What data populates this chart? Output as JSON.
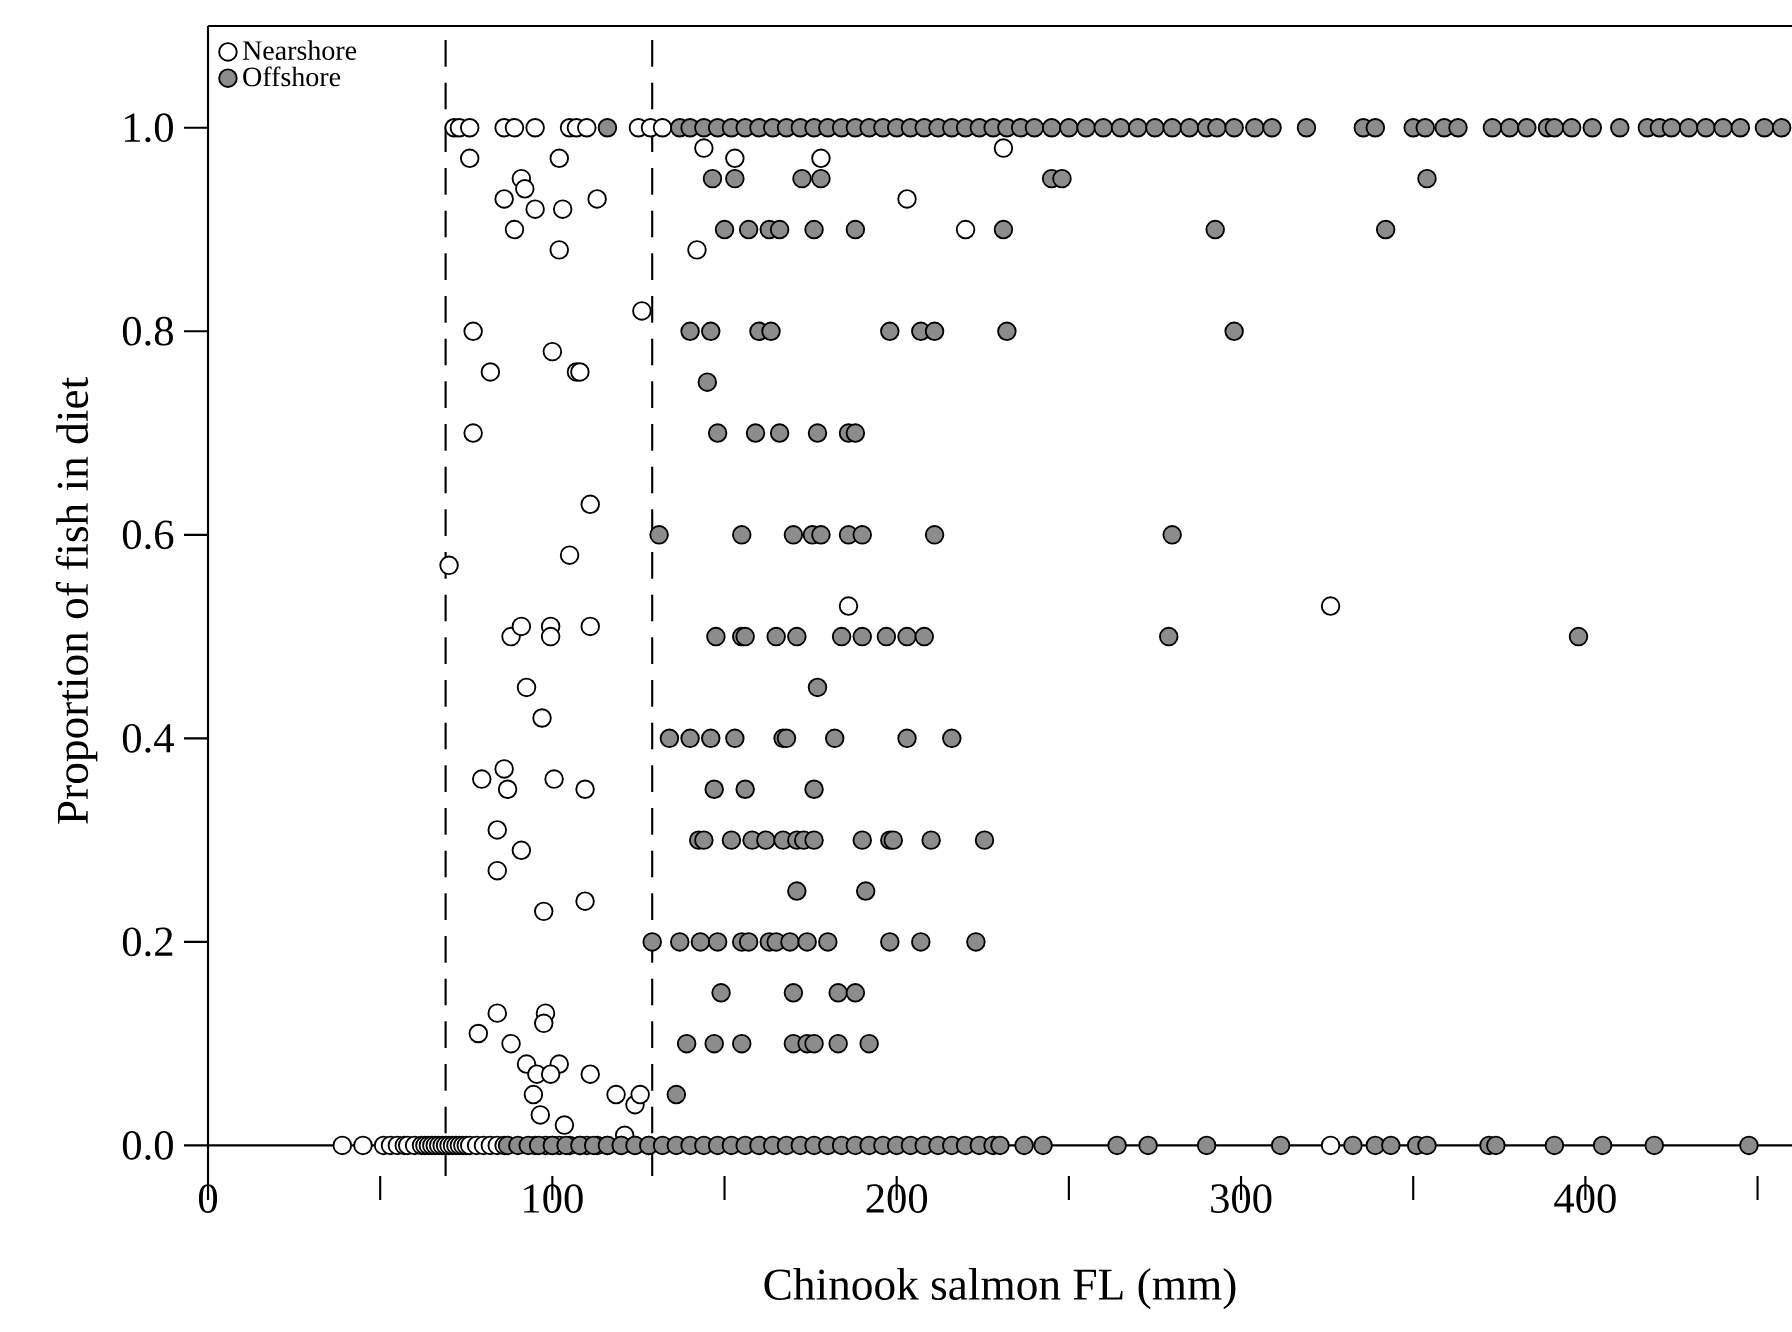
{
  "chart_data": {
    "type": "scatter",
    "xlabel": "Chinook salmon FL (mm)",
    "ylabel": "Proportion of fish in diet",
    "xlim": [
      0,
      460
    ],
    "ylim": [
      -0.03,
      1.1
    ],
    "xticks": [
      0,
      {
        "value": 50,
        "label": null
      },
      100,
      {
        "value": 150,
        "label": null
      },
      200,
      {
        "value": 250,
        "label": null
      },
      300,
      {
        "value": 350,
        "label": null
      },
      400,
      {
        "value": 450,
        "label": null
      }
    ],
    "yticks": [
      {
        "value": 0,
        "label": "0.0"
      },
      0.2,
      0.4,
      0.6,
      0.8,
      {
        "value": 1,
        "label": "1.0"
      }
    ],
    "legend": "top left",
    "ref_lines": [
      {
        "axis": "x",
        "value": 69,
        "line_style": "dashed",
        "color": "#000000"
      },
      {
        "axis": "x",
        "value": 129,
        "line_style": "dashed",
        "color": "#000000"
      }
    ],
    "series": [
      {
        "name": "Nearshore",
        "color": "#ffffff",
        "x": [
          71.5,
          73,
          76,
          86,
          89,
          95,
          105,
          107,
          110,
          125,
          128.5,
          132,
          76,
          102,
          144,
          153,
          178,
          231,
          86,
          91,
          92,
          95,
          89,
          103,
          102,
          113,
          203,
          142,
          220,
          126,
          77,
          82,
          77,
          100,
          107,
          108,
          111,
          105,
          70,
          186,
          326,
          88,
          91,
          99.5,
          99.5,
          111,
          92.5,
          97,
          79.5,
          86,
          87,
          100.5,
          109.5,
          84,
          91,
          84,
          97.5,
          109.5,
          84,
          78.5,
          98,
          97.5,
          88,
          92.5,
          95.5,
          102,
          99.5,
          111,
          94.5,
          96.5,
          103.5,
          118.5,
          124,
          125.5,
          121,
          39,
          45,
          51,
          53,
          55,
          57,
          58,
          60,
          62,
          63,
          64,
          65,
          66,
          67,
          68,
          69,
          70,
          71,
          72,
          73,
          74,
          75,
          76,
          78,
          80,
          82,
          84,
          86,
          95,
          98,
          100,
          102,
          105,
          108,
          110,
          113,
          116,
          120,
          124,
          128,
          326
        ],
        "values": [
          1,
          1,
          1,
          1,
          1,
          1,
          1,
          1,
          1,
          1,
          1,
          1,
          0.97,
          0.97,
          0.98,
          0.97,
          0.97,
          0.98,
          0.93,
          0.95,
          0.94,
          0.92,
          0.9,
          0.92,
          0.88,
          0.93,
          0.93,
          0.88,
          0.9,
          0.82,
          0.8,
          0.76,
          0.7,
          0.78,
          0.76,
          0.76,
          0.63,
          0.58,
          0.57,
          0.53,
          0.53,
          0.5,
          0.51,
          0.51,
          0.5,
          0.51,
          0.45,
          0.42,
          0.36,
          0.37,
          0.35,
          0.36,
          0.35,
          0.31,
          0.29,
          0.27,
          0.23,
          0.24,
          0.13,
          0.11,
          0.13,
          0.12,
          0.1,
          0.08,
          0.07,
          0.08,
          0.07,
          0.07,
          0.05,
          0.03,
          0.02,
          0.05,
          0.04,
          0.05,
          0.01,
          0,
          0,
          0,
          0,
          0,
          0,
          0,
          0,
          0,
          0,
          0,
          0,
          0,
          0,
          0,
          0,
          0,
          0,
          0,
          0,
          0,
          0,
          0,
          0,
          0,
          0,
          0,
          0,
          0,
          0,
          0,
          0,
          0,
          0,
          0,
          0,
          0,
          0,
          0,
          0,
          0
        ]
      },
      {
        "name": "Offshore",
        "color": "#8c8c8c",
        "x": [
          116,
          137,
          140,
          144,
          148,
          152,
          156,
          160,
          164,
          168,
          172,
          176,
          180,
          184,
          188,
          192,
          196,
          200,
          204,
          208,
          212,
          216,
          220,
          224,
          228,
          232,
          236,
          240,
          245,
          250,
          255,
          260,
          265,
          270,
          275,
          280,
          285,
          290,
          293,
          298,
          304,
          309,
          319,
          335.5,
          339,
          350,
          353.5,
          359,
          363,
          373,
          378,
          383,
          389,
          391,
          396,
          402,
          410,
          418,
          421.5,
          425,
          430,
          435,
          440,
          445,
          452,
          457,
          146.5,
          153,
          172.5,
          178,
          245,
          248,
          354,
          150,
          157,
          163,
          166,
          176,
          188,
          231,
          292.5,
          342,
          140,
          146,
          160,
          163.5,
          198,
          207,
          211,
          232,
          298,
          145,
          148,
          159,
          166,
          177,
          186,
          188,
          131,
          155,
          170,
          175.5,
          178,
          186,
          190,
          211,
          280,
          147.5,
          155,
          156,
          165,
          171,
          184,
          190,
          197,
          203,
          208,
          279,
          398,
          177,
          134,
          140,
          146,
          153,
          167,
          168,
          182,
          203,
          216,
          147,
          156,
          176,
          142.5,
          144,
          152,
          158,
          162,
          167,
          171,
          173,
          176,
          190,
          198,
          199,
          210,
          225.5,
          171,
          191,
          129,
          137,
          143,
          148,
          155,
          157,
          163,
          165,
          169,
          174,
          180,
          198,
          207,
          223,
          149,
          170,
          183,
          188,
          139,
          147,
          155,
          170,
          174,
          176,
          183,
          192,
          136,
          87,
          90,
          93,
          96,
          100,
          104,
          108,
          112,
          116,
          120,
          124,
          128,
          132,
          136,
          140,
          144,
          148,
          152,
          156,
          160,
          164,
          168,
          172,
          176,
          180,
          184,
          188,
          192,
          196,
          200,
          204,
          208,
          212,
          216,
          220,
          224,
          228,
          230,
          237,
          242.5,
          264,
          273,
          290,
          311.5,
          332.5,
          339,
          343.5,
          351,
          354,
          372,
          374,
          391,
          405,
          420,
          447.5
        ],
        "values": [
          1,
          1,
          1,
          1,
          1,
          1,
          1,
          1,
          1,
          1,
          1,
          1,
          1,
          1,
          1,
          1,
          1,
          1,
          1,
          1,
          1,
          1,
          1,
          1,
          1,
          1,
          1,
          1,
          1,
          1,
          1,
          1,
          1,
          1,
          1,
          1,
          1,
          1,
          1,
          1,
          1,
          1,
          1,
          1,
          1,
          1,
          1,
          1,
          1,
          1,
          1,
          1,
          1,
          1,
          1,
          1,
          1,
          1,
          1,
          1,
          1,
          1,
          1,
          1,
          1,
          1,
          0.95,
          0.95,
          0.95,
          0.95,
          0.95,
          0.95,
          0.95,
          0.9,
          0.9,
          0.9,
          0.9,
          0.9,
          0.9,
          0.9,
          0.9,
          0.9,
          0.8,
          0.8,
          0.8,
          0.8,
          0.8,
          0.8,
          0.8,
          0.8,
          0.8,
          0.75,
          0.7,
          0.7,
          0.7,
          0.7,
          0.7,
          0.7,
          0.6,
          0.6,
          0.6,
          0.6,
          0.6,
          0.6,
          0.6,
          0.6,
          0.6,
          0.5,
          0.5,
          0.5,
          0.5,
          0.5,
          0.5,
          0.5,
          0.5,
          0.5,
          0.5,
          0.5,
          0.5,
          0.45,
          0.4,
          0.4,
          0.4,
          0.4,
          0.4,
          0.4,
          0.4,
          0.4,
          0.4,
          0.35,
          0.35,
          0.35,
          0.3,
          0.3,
          0.3,
          0.3,
          0.3,
          0.3,
          0.3,
          0.3,
          0.3,
          0.3,
          0.3,
          0.3,
          0.3,
          0.3,
          0.25,
          0.25,
          0.2,
          0.2,
          0.2,
          0.2,
          0.2,
          0.2,
          0.2,
          0.2,
          0.2,
          0.2,
          0.2,
          0.2,
          0.2,
          0.2,
          0.15,
          0.15,
          0.15,
          0.15,
          0.1,
          0.1,
          0.1,
          0.1,
          0.1,
          0.1,
          0.1,
          0.1,
          0.05,
          0,
          0,
          0,
          0,
          0,
          0,
          0,
          0,
          0,
          0,
          0,
          0,
          0,
          0,
          0,
          0,
          0,
          0,
          0,
          0,
          0,
          0,
          0,
          0,
          0,
          0,
          0,
          0,
          0,
          0,
          0,
          0,
          0,
          0,
          0,
          0,
          0,
          0,
          0,
          0,
          0,
          0,
          0,
          0,
          0,
          0,
          0,
          0,
          0,
          0,
          0,
          0,
          0,
          0,
          0
        ]
      }
    ]
  }
}
